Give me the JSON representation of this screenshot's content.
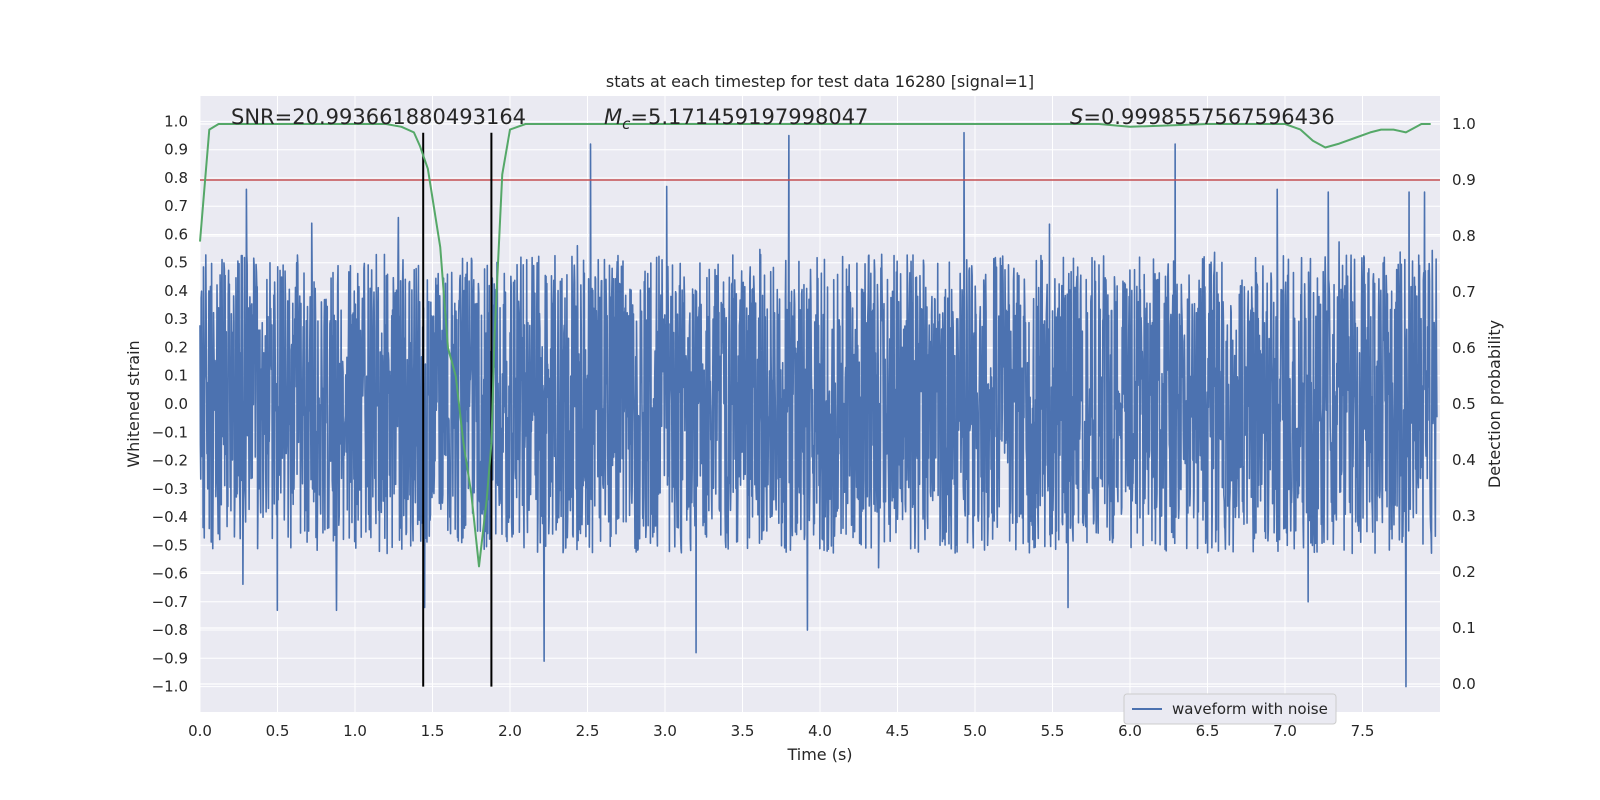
{
  "chart_data": {
    "type": "line",
    "title": "stats at each timestep for test data 16280 [signal=1]",
    "xlabel": "Time (s)",
    "ylabel_left": "Whitened strain",
    "ylabel_right": "Detection probability",
    "xlim": [
      0.0,
      8.0
    ],
    "ylim_left": [
      -1.09,
      1.09
    ],
    "ylim_right": [
      -0.05,
      1.05
    ],
    "x_ticks": [
      0.0,
      0.5,
      1.0,
      1.5,
      2.0,
      2.5,
      3.0,
      3.5,
      4.0,
      4.5,
      5.0,
      5.5,
      6.0,
      6.5,
      7.0,
      7.5
    ],
    "x_tick_labels": [
      "0.0",
      "0.5",
      "1.0",
      "1.5",
      "2.0",
      "2.5",
      "3.0",
      "3.5",
      "4.0",
      "4.5",
      "5.0",
      "5.5",
      "6.0",
      "6.5",
      "7.0",
      "7.5"
    ],
    "y_left_ticks": [
      1.0,
      0.9,
      0.8,
      0.7,
      0.6,
      0.5,
      0.4,
      0.3,
      0.2,
      0.1,
      0.0,
      -0.1,
      -0.2,
      -0.3,
      -0.4,
      -0.5,
      -0.6,
      -0.7,
      -0.8,
      -0.9,
      -1.0
    ],
    "y_left_tick_labels": [
      "1.0",
      "0.9",
      "0.8",
      "0.7",
      "0.6",
      "0.5",
      "0.4",
      "0.3",
      "0.2",
      "0.1",
      "0.0",
      "−0.1",
      "−0.2",
      "−0.3",
      "−0.4",
      "−0.5",
      "−0.6",
      "−0.7",
      "−0.8",
      "−0.9",
      "−1.0"
    ],
    "y_right_ticks": [
      1.0,
      0.9,
      0.8,
      0.7,
      0.6,
      0.5,
      0.4,
      0.3,
      0.2,
      0.1,
      0.0
    ],
    "y_right_tick_labels": [
      "1.0",
      "0.9",
      "0.8",
      "0.7",
      "0.6",
      "0.5",
      "0.4",
      "0.3",
      "0.2",
      "0.1",
      "0.0"
    ],
    "annotations": {
      "snr": "SNR=20.993661880493164",
      "mc_symbol": "M",
      "mc_sub": "c",
      "mc_value": "=5.171459197998047",
      "s_symbol": "S",
      "s_value": "=0.9998557567596436"
    },
    "legend": {
      "label": "waveform with noise",
      "position": "lower-right"
    },
    "waveform": {
      "name": "waveform with noise",
      "color": "#4c72b0",
      "n_samples": 3200,
      "typical_amplitude": 0.35,
      "spikes": [
        {
          "t": 0.3,
          "v": 0.76
        },
        {
          "t": 0.72,
          "v": 0.64
        },
        {
          "t": 1.28,
          "v": 0.66
        },
        {
          "t": 2.52,
          "v": 0.92
        },
        {
          "t": 3.01,
          "v": 0.77
        },
        {
          "t": 3.8,
          "v": 0.95
        },
        {
          "t": 4.93,
          "v": 0.96
        },
        {
          "t": 6.29,
          "v": 0.92
        },
        {
          "t": 6.95,
          "v": 0.76
        },
        {
          "t": 7.28,
          "v": 0.75
        },
        {
          "t": 7.8,
          "v": 0.75
        },
        {
          "t": 7.9,
          "v": 0.75
        },
        {
          "t": 0.5,
          "v": -0.73
        },
        {
          "t": 0.88,
          "v": -0.73
        },
        {
          "t": 1.45,
          "v": -0.72
        },
        {
          "t": 2.22,
          "v": -0.91
        },
        {
          "t": 3.2,
          "v": -0.88
        },
        {
          "t": 3.92,
          "v": -0.8
        },
        {
          "t": 7.78,
          "v": -1.0
        },
        {
          "t": 7.15,
          "v": -0.7
        },
        {
          "t": 5.6,
          "v": -0.72
        }
      ]
    },
    "threshold": {
      "value": 0.9,
      "color": "#c44e52",
      "axis": "right"
    },
    "detection_probability": {
      "color": "#55a868",
      "x": [
        0.0,
        0.06,
        0.12,
        0.5,
        1.0,
        1.2,
        1.3,
        1.38,
        1.42,
        1.47,
        1.55,
        1.6,
        1.65,
        1.7,
        1.75,
        1.8,
        1.85,
        1.88,
        1.9,
        1.95,
        2.0,
        2.1,
        2.5,
        3.0,
        4.0,
        5.0,
        5.8,
        6.0,
        6.5,
        7.0,
        7.1,
        7.18,
        7.26,
        7.35,
        7.45,
        7.55,
        7.62,
        7.7,
        7.78,
        7.88,
        7.94
      ],
      "y": [
        0.79,
        0.99,
        1.0,
        1.0,
        1.0,
        1.0,
        0.995,
        0.985,
        0.96,
        0.92,
        0.78,
        0.6,
        0.55,
        0.43,
        0.34,
        0.21,
        0.33,
        0.43,
        0.62,
        0.91,
        0.99,
        1.0,
        1.0,
        1.0,
        1.0,
        1.0,
        1.0,
        0.995,
        1.0,
        1.0,
        0.99,
        0.97,
        0.958,
        0.965,
        0.975,
        0.985,
        0.99,
        0.99,
        0.985,
        1.0,
        1.0
      ]
    },
    "markers": [
      {
        "t": 1.44,
        "color": "#000000"
      },
      {
        "t": 1.88,
        "color": "#000000"
      }
    ]
  }
}
